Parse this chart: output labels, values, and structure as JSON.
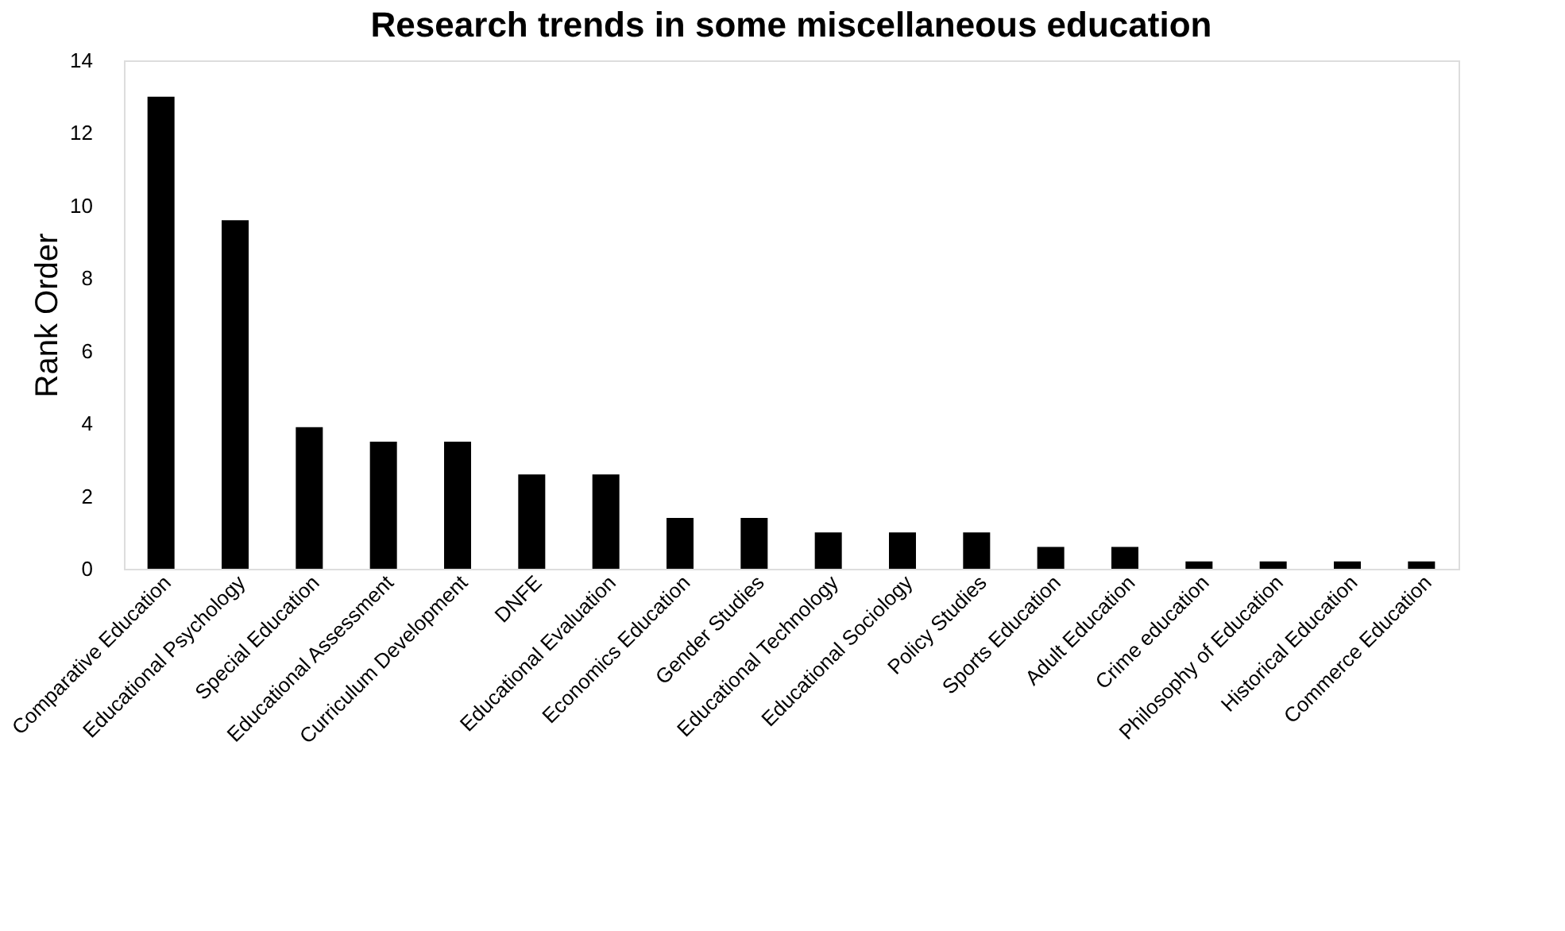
{
  "chart_data": {
    "type": "bar",
    "title": "Research trends in some miscellaneous education",
    "ylabel": "Rank Order",
    "categories": [
      "Comparative Education",
      "Educational Psychology",
      "Special Education",
      "Educational Assessment",
      "Curriculum Development",
      "DNFE",
      "Educational Evaluation",
      "Economics Education",
      "Gender Studies",
      "Educational Technology",
      "Educational Sociology",
      "Policy Studies",
      "Sports Education",
      "Adult Education",
      "Crime education",
      "Philosophy of Education",
      "Historical Education",
      "Commerce Education"
    ],
    "values": [
      13,
      9.6,
      3.9,
      3.5,
      3.5,
      2.6,
      2.6,
      1.4,
      1.4,
      1.0,
      1.0,
      1.0,
      0.6,
      0.6,
      0.2,
      0.2,
      0.2,
      0.2
    ],
    "color": "#000000",
    "ylim": [
      0,
      14
    ],
    "yticks": [
      0,
      2,
      4,
      6,
      8,
      10,
      12,
      14
    ],
    "grid": false
  }
}
